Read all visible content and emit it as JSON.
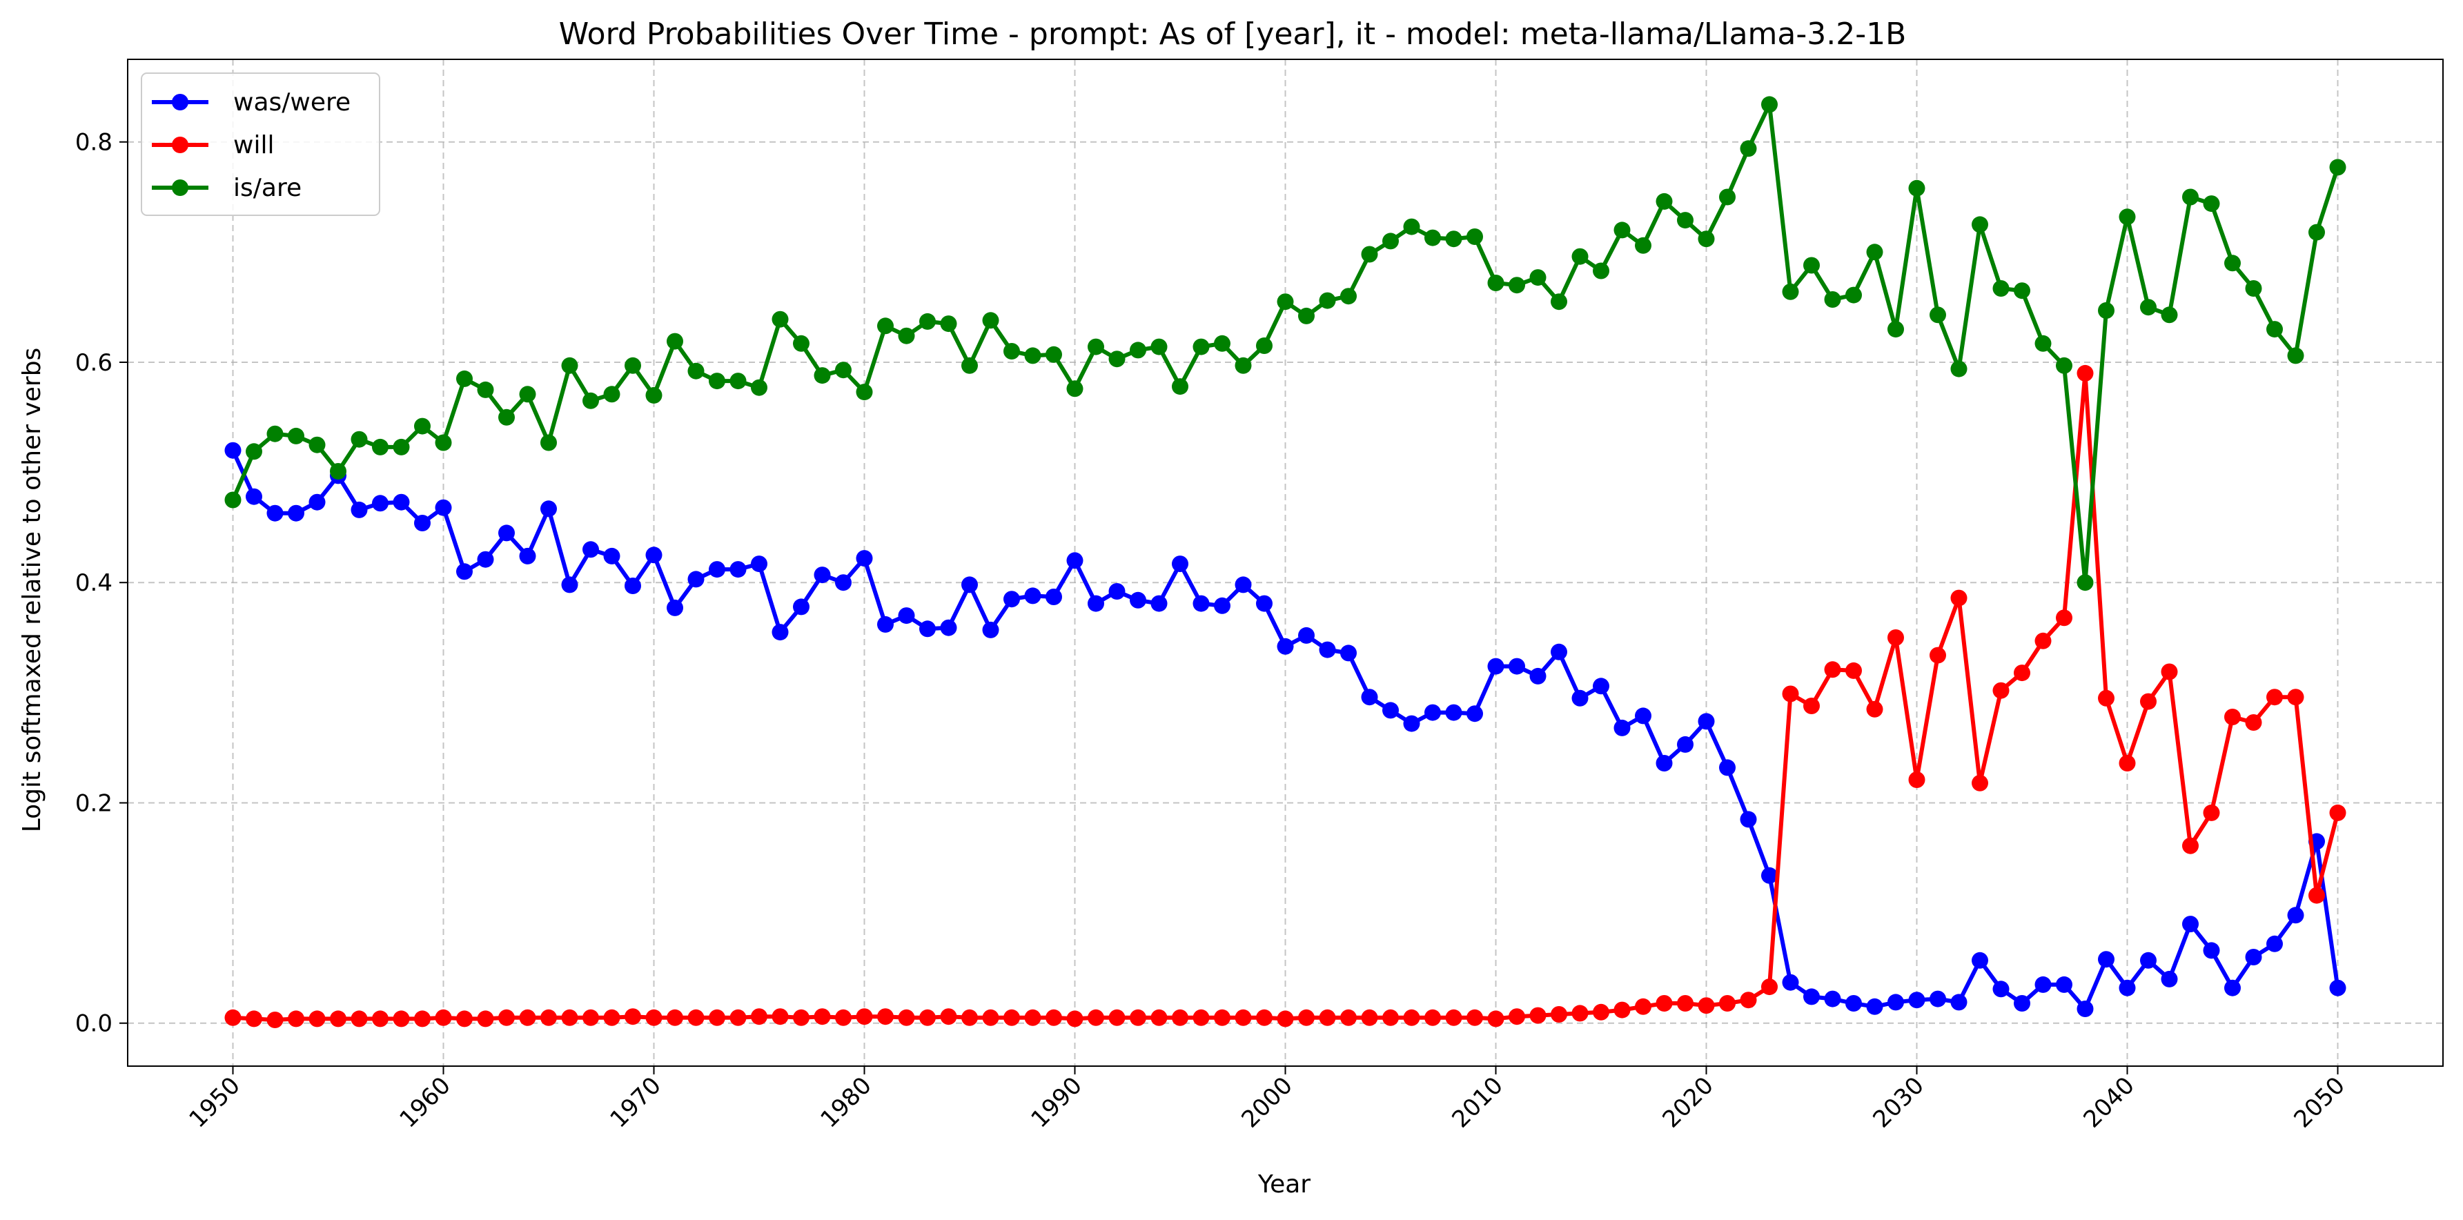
{
  "chart_data": {
    "type": "line",
    "title": "Word Probabilities Over Time - prompt: As of [year], it - model: meta-llama/Llama-3.2-1B",
    "xlabel": "Year",
    "ylabel": "Logit softmaxed relative to other verbs",
    "xlim": [
      1945,
      2055
    ],
    "ylim": [
      -0.039,
      0.875
    ],
    "xticks": [
      1950,
      1960,
      1970,
      1980,
      1990,
      2000,
      2010,
      2020,
      2030,
      2040,
      2050
    ],
    "yticks": [
      0.0,
      0.2,
      0.4,
      0.6,
      0.8
    ],
    "ytick_labels": [
      "0.0",
      "0.2",
      "0.4",
      "0.6",
      "0.8"
    ],
    "grid": true,
    "legend_position": "top-left",
    "x": [
      1950,
      1951,
      1952,
      1953,
      1954,
      1955,
      1956,
      1957,
      1958,
      1959,
      1960,
      1961,
      1962,
      1963,
      1964,
      1965,
      1966,
      1967,
      1968,
      1969,
      1970,
      1971,
      1972,
      1973,
      1974,
      1975,
      1976,
      1977,
      1978,
      1979,
      1980,
      1981,
      1982,
      1983,
      1984,
      1985,
      1986,
      1987,
      1988,
      1989,
      1990,
      1991,
      1992,
      1993,
      1994,
      1995,
      1996,
      1997,
      1998,
      1999,
      2000,
      2001,
      2002,
      2003,
      2004,
      2005,
      2006,
      2007,
      2008,
      2009,
      2010,
      2011,
      2012,
      2013,
      2014,
      2015,
      2016,
      2017,
      2018,
      2019,
      2020,
      2021,
      2022,
      2023,
      2024,
      2025,
      2026,
      2027,
      2028,
      2029,
      2030,
      2031,
      2032,
      2033,
      2034,
      2035,
      2036,
      2037,
      2038,
      2039,
      2040,
      2041,
      2042,
      2043,
      2044,
      2045,
      2046,
      2047,
      2048,
      2049,
      2050
    ],
    "series": [
      {
        "name": "was/were",
        "color": "#0000ff",
        "values": [
          0.52,
          0.478,
          0.463,
          0.463,
          0.473,
          0.497,
          0.466,
          0.472,
          0.473,
          0.454,
          0.468,
          0.41,
          0.421,
          0.445,
          0.424,
          0.467,
          0.398,
          0.43,
          0.424,
          0.397,
          0.425,
          0.377,
          0.403,
          0.412,
          0.412,
          0.417,
          0.355,
          0.378,
          0.407,
          0.4,
          0.422,
          0.362,
          0.37,
          0.358,
          0.359,
          0.398,
          0.357,
          0.385,
          0.388,
          0.387,
          0.42,
          0.381,
          0.392,
          0.384,
          0.381,
          0.417,
          0.381,
          0.379,
          0.398,
          0.381,
          0.342,
          0.352,
          0.339,
          0.336,
          0.296,
          0.284,
          0.272,
          0.282,
          0.282,
          0.281,
          0.324,
          0.324,
          0.315,
          0.337,
          0.295,
          0.306,
          0.268,
          0.279,
          0.236,
          0.253,
          0.274,
          0.232,
          0.185,
          0.134,
          0.037,
          0.024,
          0.022,
          0.018,
          0.015,
          0.019,
          0.021,
          0.022,
          0.019,
          0.057,
          0.031,
          0.018,
          0.035,
          0.035,
          0.013,
          0.058,
          0.032,
          0.057,
          0.04,
          0.09,
          0.066,
          0.032,
          0.06,
          0.072,
          0.098,
          0.165,
          0.032
        ]
      },
      {
        "name": "will",
        "color": "#ff0000",
        "values": [
          0.005,
          0.004,
          0.003,
          0.004,
          0.004,
          0.004,
          0.004,
          0.004,
          0.004,
          0.004,
          0.005,
          0.004,
          0.004,
          0.005,
          0.005,
          0.005,
          0.005,
          0.005,
          0.005,
          0.006,
          0.005,
          0.005,
          0.005,
          0.005,
          0.005,
          0.006,
          0.006,
          0.005,
          0.006,
          0.005,
          0.006,
          0.006,
          0.005,
          0.005,
          0.006,
          0.005,
          0.005,
          0.005,
          0.005,
          0.005,
          0.004,
          0.005,
          0.005,
          0.005,
          0.005,
          0.005,
          0.005,
          0.005,
          0.005,
          0.005,
          0.004,
          0.005,
          0.005,
          0.005,
          0.005,
          0.005,
          0.005,
          0.005,
          0.005,
          0.005,
          0.004,
          0.006,
          0.007,
          0.008,
          0.009,
          0.01,
          0.012,
          0.015,
          0.018,
          0.018,
          0.016,
          0.018,
          0.021,
          0.033,
          0.299,
          0.288,
          0.321,
          0.32,
          0.285,
          0.35,
          0.221,
          0.334,
          0.386,
          0.218,
          0.302,
          0.318,
          0.347,
          0.368,
          0.59,
          0.295,
          0.236,
          0.292,
          0.319,
          0.161,
          0.191,
          0.278,
          0.273,
          0.296,
          0.296,
          0.116,
          0.191
        ]
      },
      {
        "name": "is/are",
        "color": "#008000",
        "values": [
          0.475,
          0.519,
          0.535,
          0.533,
          0.525,
          0.501,
          0.53,
          0.523,
          0.523,
          0.542,
          0.527,
          0.585,
          0.575,
          0.55,
          0.571,
          0.527,
          0.597,
          0.565,
          0.571,
          0.597,
          0.57,
          0.619,
          0.592,
          0.583,
          0.583,
          0.577,
          0.639,
          0.617,
          0.588,
          0.593,
          0.573,
          0.633,
          0.624,
          0.637,
          0.635,
          0.597,
          0.638,
          0.61,
          0.606,
          0.607,
          0.576,
          0.614,
          0.603,
          0.611,
          0.614,
          0.578,
          0.614,
          0.617,
          0.597,
          0.615,
          0.655,
          0.642,
          0.656,
          0.66,
          0.698,
          0.71,
          0.723,
          0.713,
          0.712,
          0.714,
          0.672,
          0.67,
          0.677,
          0.655,
          0.696,
          0.683,
          0.72,
          0.706,
          0.746,
          0.729,
          0.712,
          0.75,
          0.794,
          0.834,
          0.664,
          0.688,
          0.657,
          0.661,
          0.7,
          0.63,
          0.758,
          0.643,
          0.594,
          0.725,
          0.667,
          0.665,
          0.617,
          0.597,
          0.4,
          0.647,
          0.732,
          0.65,
          0.643,
          0.75,
          0.744,
          0.69,
          0.667,
          0.63,
          0.606,
          0.718,
          0.777
        ]
      }
    ]
  }
}
